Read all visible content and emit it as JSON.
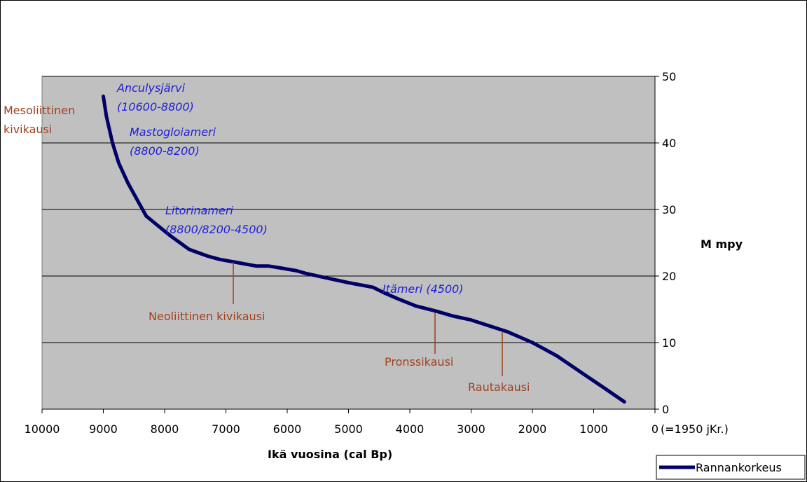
{
  "chart_data": {
    "type": "line",
    "xlabel": "Ikä vuosina (cal  Bp)",
    "ylabel": "M mpy",
    "xlim": [
      10000,
      0
    ],
    "ylim": [
      0,
      50
    ],
    "x_reversed": true,
    "y_axis_side": "right",
    "x_ticks": [
      "10000",
      "9000",
      "8000",
      "7000",
      "6000",
      "5000",
      "4000",
      "3000",
      "2000",
      "1000",
      "0"
    ],
    "y_ticks": [
      "0",
      "10",
      "20",
      "30",
      "40",
      "50"
    ],
    "x_zero_note": "(=1950 jKr.)",
    "grid": true,
    "plot_background": "#c0c0c0",
    "legend_position": "bottom-right",
    "series": [
      {
        "name": "Rannankorkeus",
        "color": "#000066",
        "x": [
          9000,
          8950,
          8850,
          8750,
          8600,
          8450,
          8300,
          8100,
          7900,
          7600,
          7300,
          7100,
          6800,
          6500,
          6300,
          6100,
          5850,
          5700,
          5400,
          5000,
          4600,
          4400,
          4200,
          3900,
          3600,
          3300,
          3000,
          2700,
          2400,
          2000,
          1600,
          1200,
          800,
          500
        ],
        "y": [
          47,
          44,
          40,
          37,
          34,
          31.5,
          29,
          27.5,
          26,
          24,
          23,
          22.5,
          22,
          21.5,
          21.5,
          21.2,
          20.8,
          20.4,
          19.8,
          19,
          18.3,
          17.4,
          16.6,
          15.5,
          14.8,
          14,
          13.4,
          12.5,
          11.6,
          10,
          8,
          5.5,
          3,
          1.1
        ]
      }
    ],
    "annotations": {
      "periods_blue": [
        {
          "id": "anculus",
          "lines": [
            "Anculysjärvi",
            "(10600-8800)"
          ]
        },
        {
          "id": "mastogloia",
          "lines": [
            "Mastogloiameri",
            "(8800-8200)"
          ]
        },
        {
          "id": "litorina",
          "lines": [
            "Litorinameri",
            "(8800/8200-4500)"
          ]
        },
        {
          "id": "itameri",
          "lines": [
            "Itämeri (4500)"
          ]
        }
      ],
      "cultures_brown": [
        {
          "id": "mesolithic",
          "lines": [
            "Mesoliittinen",
            "kivikausi"
          ]
        },
        {
          "id": "neolithic",
          "lines": [
            "Neoliittinen kivikausi"
          ]
        },
        {
          "id": "bronze",
          "lines": [
            "Pronssikausi"
          ]
        },
        {
          "id": "iron",
          "lines": [
            "Rautakausi"
          ]
        }
      ]
    }
  }
}
